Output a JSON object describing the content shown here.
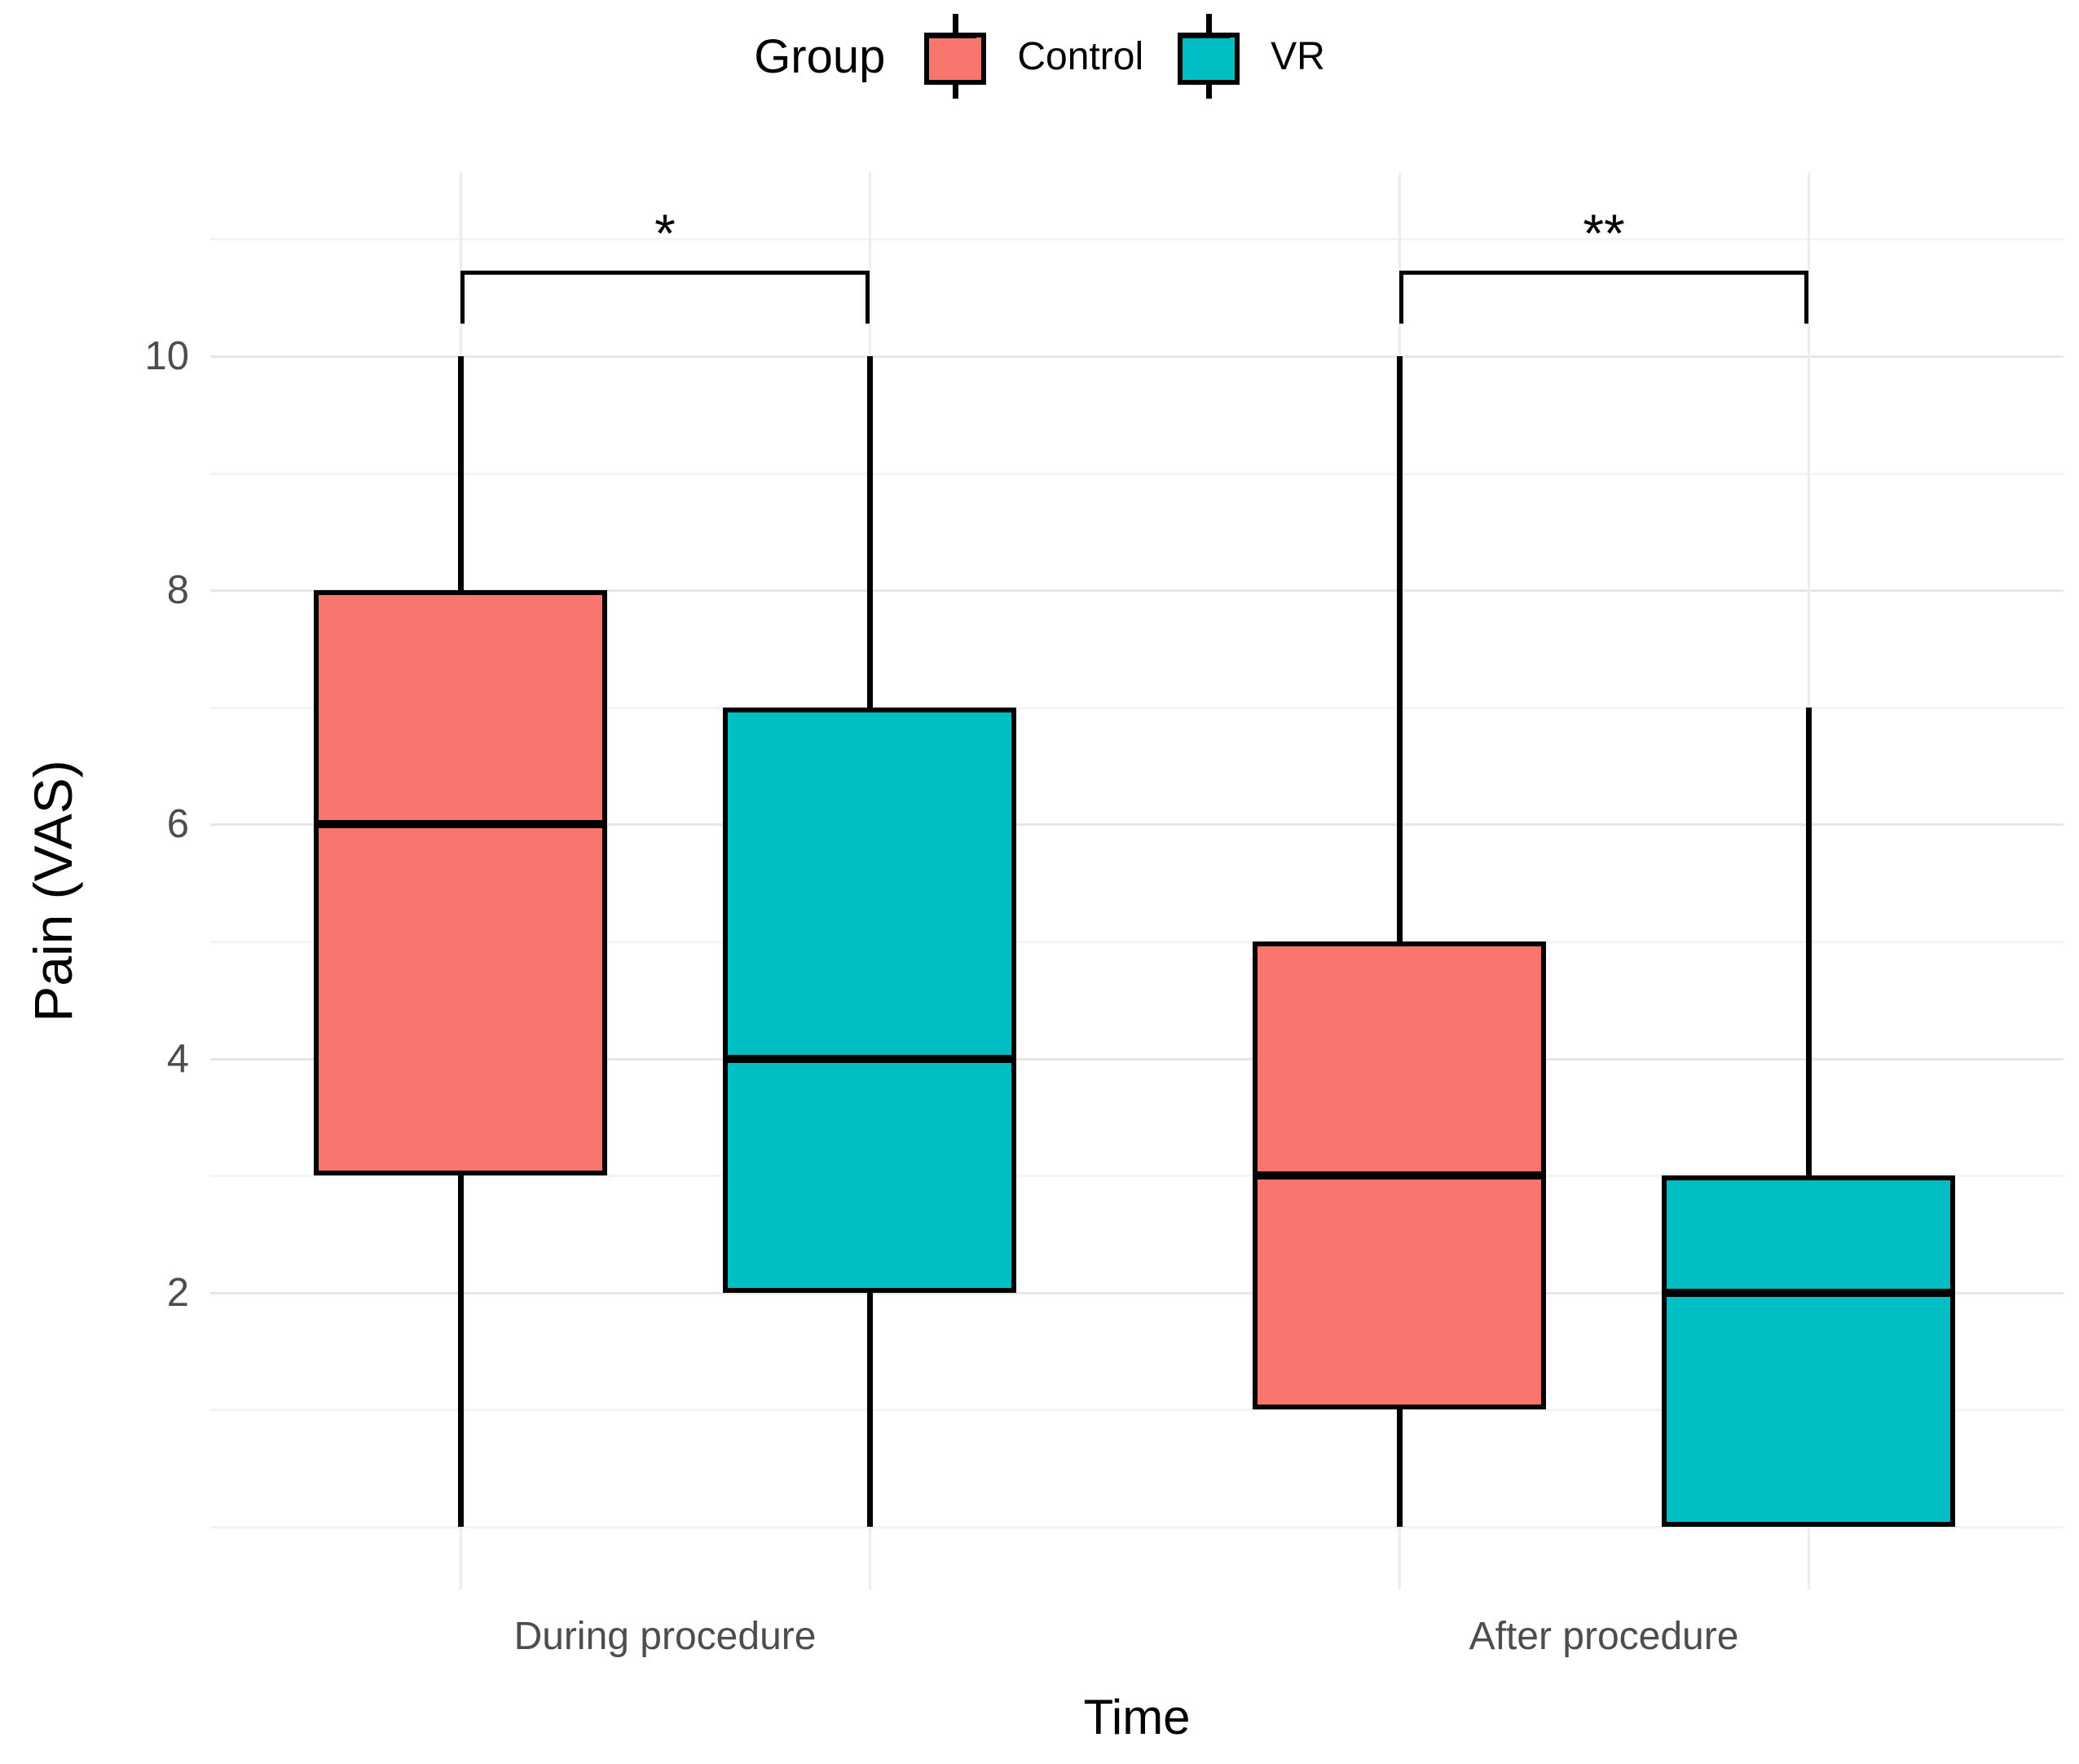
{
  "chart_data": {
    "type": "boxplot",
    "legend": {
      "title": "Group",
      "items": [
        {
          "label": "Control",
          "color": "#F8766D"
        },
        {
          "label": "VR",
          "color": "#00BFC4"
        }
      ]
    },
    "xlabel": "Time",
    "ylabel": "Pain (VAS)",
    "categories": [
      "During procedure",
      "After procedure"
    ],
    "groups": [
      "Control",
      "VR"
    ],
    "y_axis": {
      "tick_labels": [
        2,
        4,
        6,
        8,
        10
      ],
      "major_gridlines": [
        2,
        4,
        6,
        8,
        10
      ],
      "minor_gridlines": [
        0,
        1,
        3,
        5,
        7,
        9,
        11
      ],
      "range": [
        -0.55,
        11.55
      ],
      "grid": "on"
    },
    "series": [
      {
        "category": "During procedure",
        "group": "Control",
        "min": 0,
        "q1": 3,
        "median": 6,
        "q3": 8,
        "max": 10
      },
      {
        "category": "During procedure",
        "group": "VR",
        "min": 0,
        "q1": 2,
        "median": 4,
        "q3": 7,
        "max": 10
      },
      {
        "category": "After procedure",
        "group": "Control",
        "min": 0,
        "q1": 1,
        "median": 3,
        "q3": 5,
        "max": 10
      },
      {
        "category": "After procedure",
        "group": "VR",
        "min": 0,
        "q1": 0,
        "median": 2,
        "q3": 3,
        "max": 7
      }
    ],
    "annotations": [
      {
        "category": "During procedure",
        "label": "*",
        "bar_y": 10.73,
        "tick_drop": 0.45
      },
      {
        "category": "After procedure",
        "label": "**",
        "bar_y": 10.73,
        "tick_drop": 0.45
      }
    ],
    "colors": {
      "Control": "#F8766D",
      "VR": "#00BFC4"
    },
    "legend_position": "top"
  }
}
